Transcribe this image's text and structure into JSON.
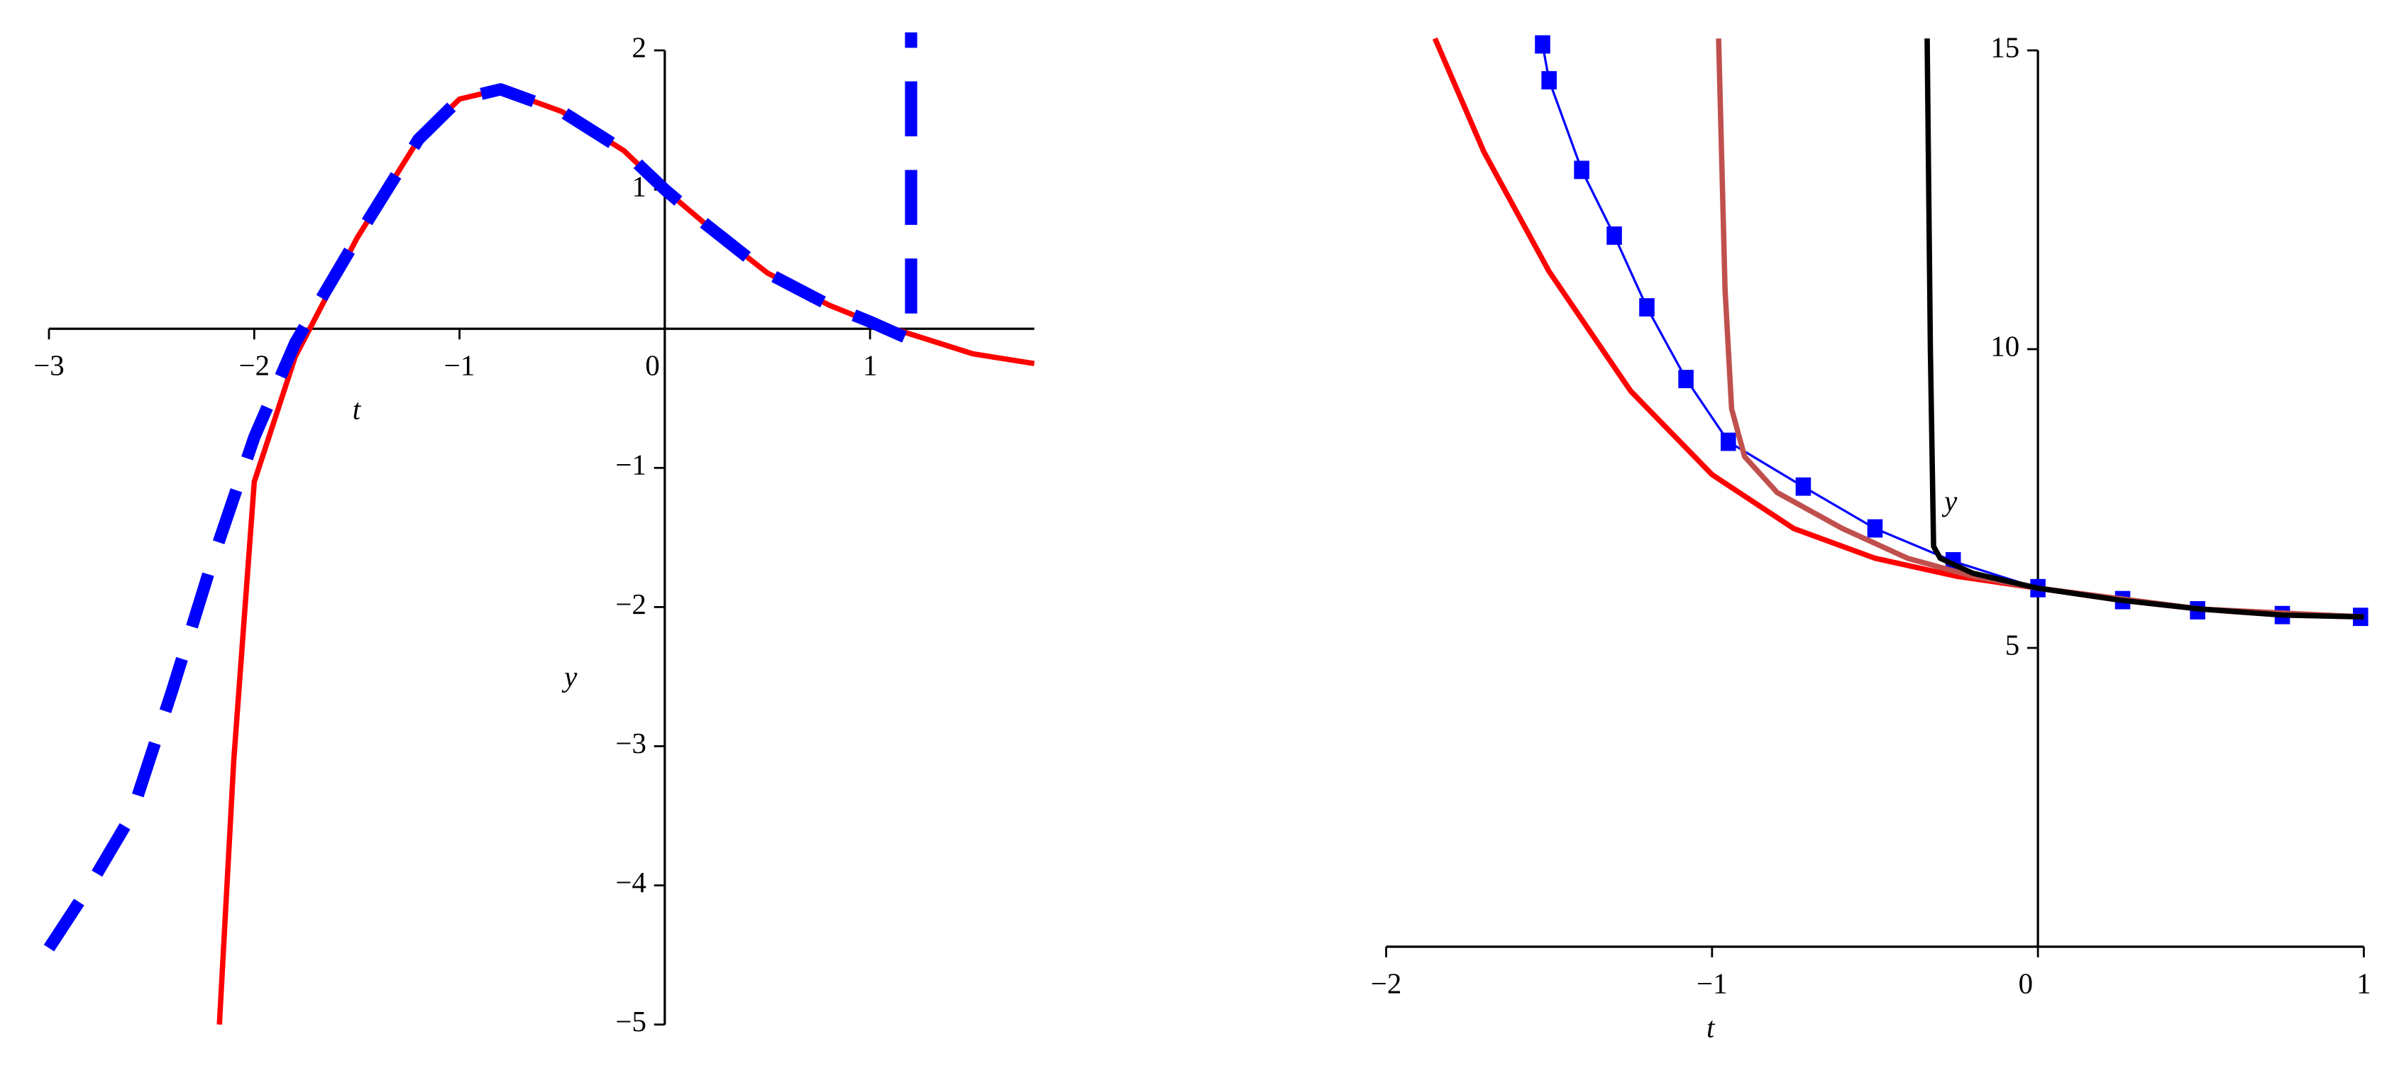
{
  "chart_data": [
    {
      "type": "line",
      "xlabel": "t",
      "ylabel": "y",
      "xlim": [
        -3,
        1.8
      ],
      "ylim": [
        -5,
        2
      ],
      "xticks": [
        {
          "value": -3,
          "label": "−3"
        },
        {
          "value": -2,
          "label": "−2"
        },
        {
          "value": -1,
          "label": "−1"
        },
        0,
        1
      ],
      "yticks": [
        {
          "value": -5,
          "label": "−5"
        },
        {
          "value": -4,
          "label": "−4"
        },
        {
          "value": -3,
          "label": "−3"
        },
        {
          "value": -2,
          "label": "−2"
        },
        {
          "value": -1,
          "label": "−1"
        },
        1,
        2
      ],
      "series": [
        {
          "color": "#ff0000",
          "linestyle": "solid",
          "x": [
            -2.17,
            -2.1,
            -2.0,
            -1.8,
            -1.5,
            -1.2,
            -1.0,
            -0.8,
            -0.5,
            -0.2,
            0,
            0.2,
            0.5,
            0.8,
            1.0,
            1.2,
            1.5,
            1.8
          ],
          "values": [
            -5,
            -3.1,
            -1.1,
            -0.2,
            0.65,
            1.36,
            1.65,
            1.72,
            1.56,
            1.28,
            1.0,
            0.75,
            0.4,
            0.17,
            0.05,
            -0.04,
            -0.18,
            -0.25
          ]
        },
        {
          "color": "#0000ff",
          "linestyle": "dash",
          "x": [
            -3,
            -2.8,
            -2.6,
            -2.4,
            -2.2,
            -2.0,
            -1.8,
            -1.5,
            -1.2,
            -1.0,
            -0.8,
            -0.5,
            -0.2,
            0,
            0.2,
            0.5,
            0.8,
            1.0,
            1.2,
            1.2
          ],
          "values": [
            -4.45,
            -4.0,
            -3.5,
            -2.6,
            -1.65,
            -0.78,
            -0.1,
            0.65,
            1.36,
            1.65,
            1.72,
            1.56,
            1.28,
            1.0,
            0.75,
            0.4,
            0.17,
            0.05,
            -0.08,
            2.13
          ]
        }
      ]
    },
    {
      "type": "line",
      "xlabel": "t",
      "ylabel": "y",
      "xlim": [
        -2,
        1
      ],
      "ylim": [
        0,
        15
      ],
      "xticks": [
        {
          "value": -2,
          "label": "−2"
        },
        {
          "value": -1,
          "label": "−1"
        },
        0,
        1
      ],
      "yticks": [
        5,
        10,
        15
      ],
      "series": [
        {
          "color": "#ff0000",
          "linestyle": "solid",
          "x": [
            -1.85,
            -1.7,
            -1.5,
            -1.25,
            -1.0,
            -0.75,
            -0.5,
            -0.25,
            0,
            0.25,
            0.5,
            0.75,
            1.0
          ],
          "values": [
            15.2,
            13.3,
            11.3,
            9.3,
            7.9,
            7.0,
            6.5,
            6.2,
            6.0,
            5.8,
            5.65,
            5.55,
            5.52
          ]
        },
        {
          "color": "#0000ff",
          "linestyle": "solid",
          "marker": "square",
          "x": [
            -1.52,
            -1.5,
            -1.4,
            -1.3,
            -1.2,
            -1.08,
            -0.95,
            -0.72,
            -0.5,
            -0.26,
            0,
            0.26,
            0.49,
            0.75,
            0.99
          ],
          "values": [
            15.1,
            14.5,
            13.0,
            11.9,
            10.7,
            9.5,
            8.45,
            7.7,
            7.0,
            6.45,
            6.0,
            5.8,
            5.63,
            5.55,
            5.52
          ]
        },
        {
          "color": "#c0504d",
          "linestyle": "solid",
          "x": [
            -0.98,
            -0.96,
            -0.94,
            -0.9,
            -0.8,
            -0.6,
            -0.4,
            -0.2,
            0,
            0.5,
            1.0
          ],
          "values": [
            15.2,
            11,
            9,
            8.2,
            7.6,
            7.0,
            6.5,
            6.2,
            6.0,
            5.65,
            5.52
          ]
        },
        {
          "color": "#000000",
          "linestyle": "solid",
          "x": [
            -0.34,
            -0.33,
            -0.32,
            -0.3,
            -0.2,
            0,
            0.25,
            0.5,
            0.75,
            1.0
          ],
          "values": [
            15.2,
            10,
            6.7,
            6.5,
            6.25,
            6.0,
            5.8,
            5.65,
            5.55,
            5.52
          ]
        }
      ]
    }
  ]
}
